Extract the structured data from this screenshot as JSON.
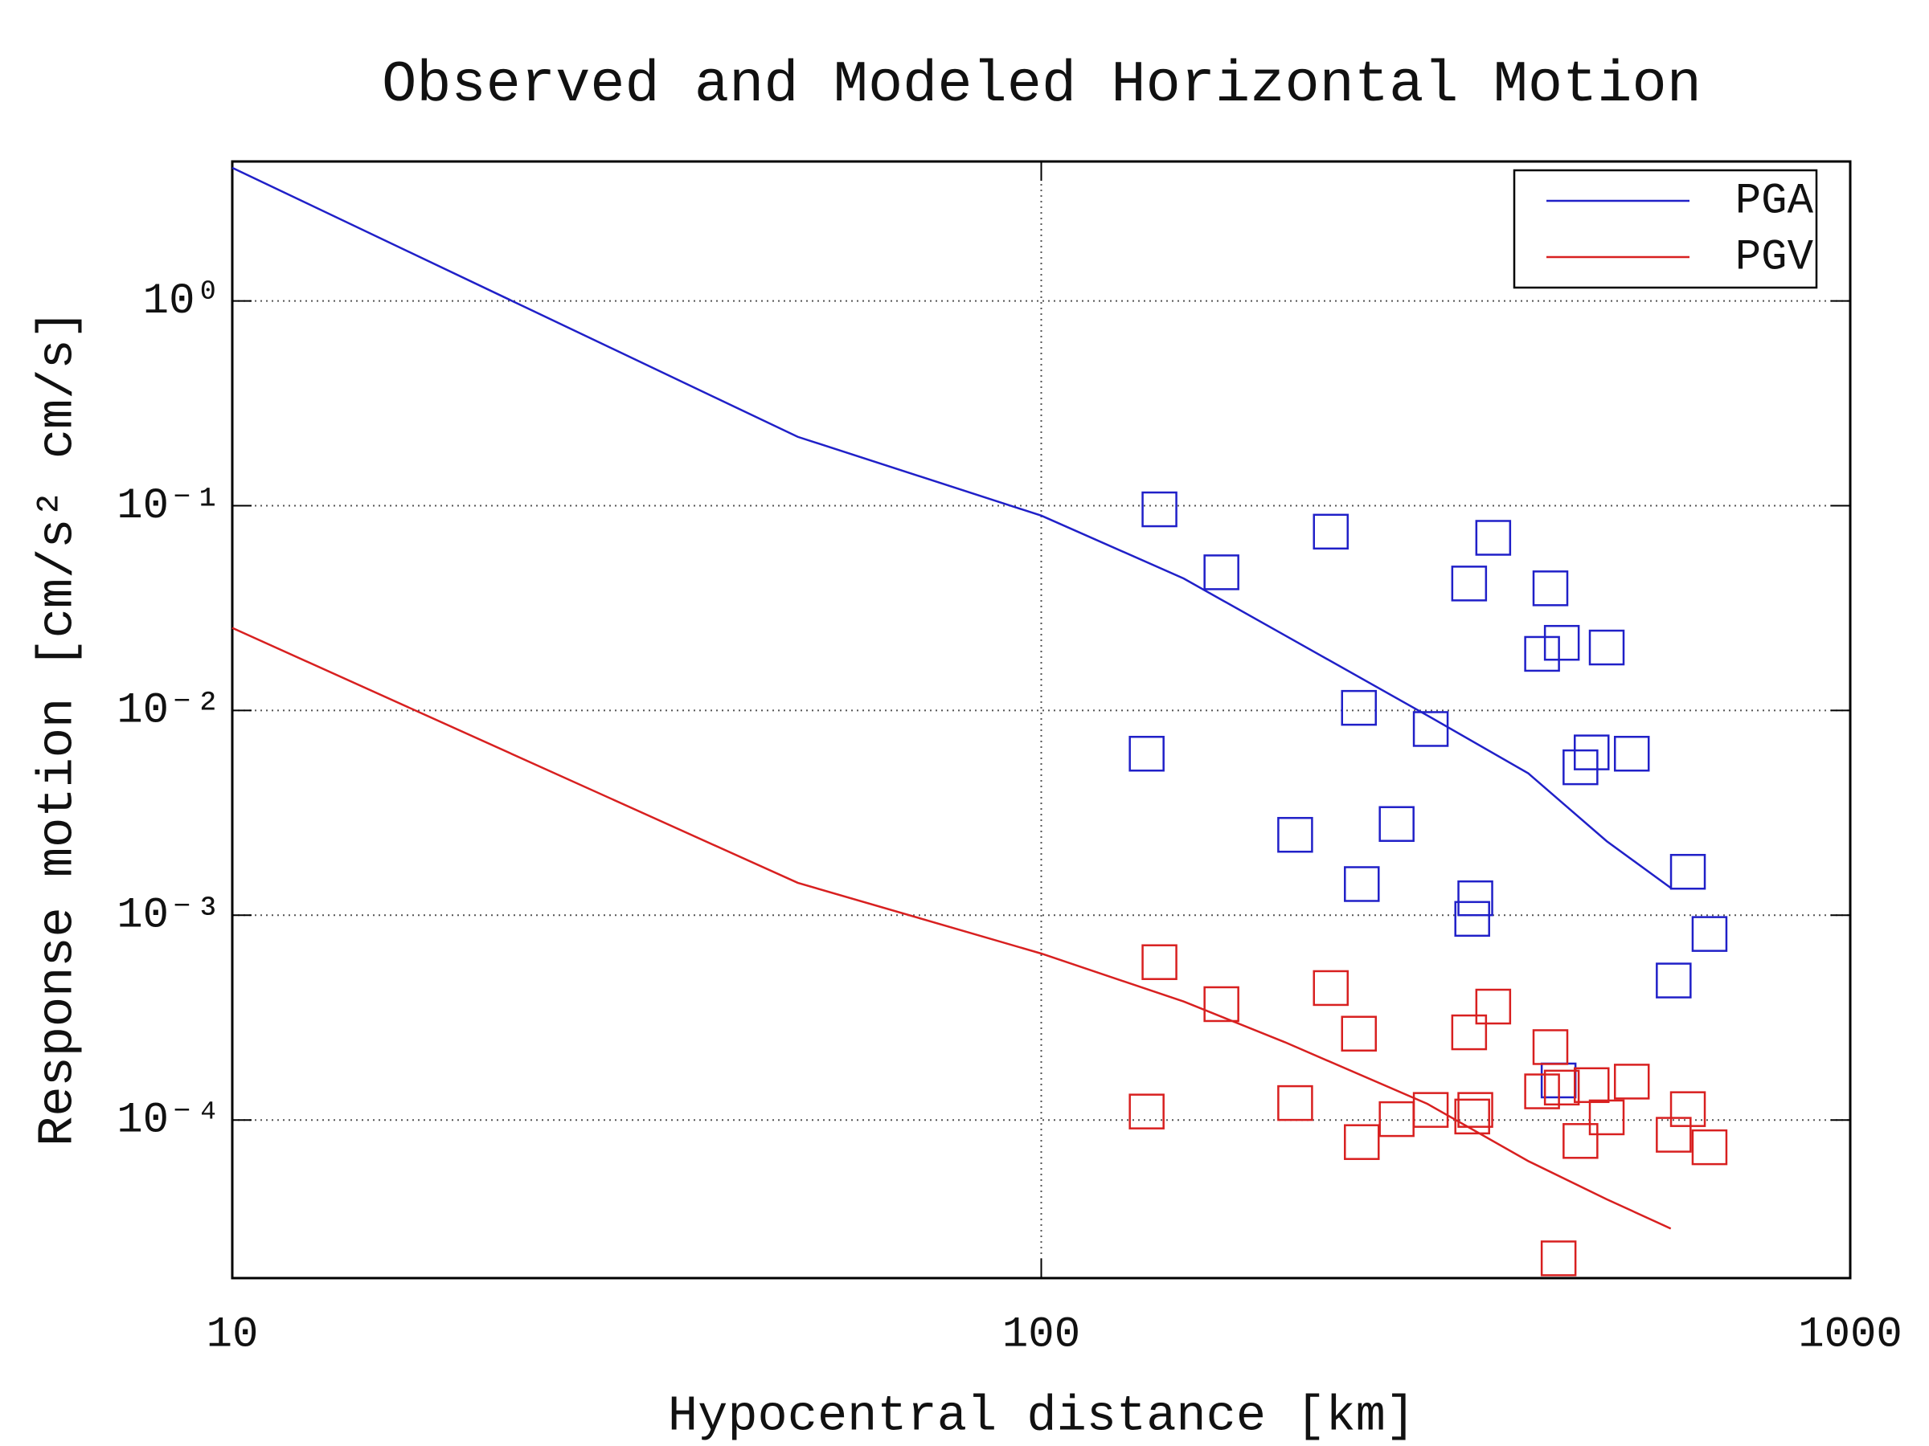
{
  "chart_data": {
    "type": "line",
    "title": "Observed and Modeled Horizontal Motion",
    "xlabel": "Hypocentral distance [km]",
    "ylabel": "Response motion [cm/s² cm/s]",
    "xscale": "log",
    "yscale": "log",
    "xlim": [
      10,
      1000
    ],
    "ylim": [
      1.69e-05,
      4.8
    ],
    "xticks": [
      10,
      100,
      1000
    ],
    "yticks": [
      {
        "value": 0.0001,
        "label": "10⁻⁴"
      },
      {
        "value": 0.001,
        "label": "10⁻³"
      },
      {
        "value": 0.01,
        "label": "10⁻²"
      },
      {
        "value": 0.1,
        "label": "10⁻¹"
      },
      {
        "value": 1,
        "label": "10⁰"
      }
    ],
    "grid": true,
    "legend": "upper right",
    "series": [
      {
        "name": "PGA",
        "color": "#2020c8",
        "mode": "lines",
        "x": [
          10,
          50,
          100,
          150,
          200,
          300,
          400,
          500,
          600
        ],
        "values": [
          4.47,
          0.217,
          0.0895,
          0.0441,
          0.0233,
          0.00946,
          0.00493,
          0.0023,
          0.00136
        ]
      },
      {
        "name": "PGV",
        "color": "#d82020",
        "mode": "lines",
        "x": [
          10,
          50,
          100,
          150,
          200,
          300,
          400,
          500,
          600
        ],
        "values": [
          0.0253,
          0.00144,
          0.00065,
          0.000379,
          0.00024,
          0.00012,
          6.3e-05,
          4.1e-05,
          2.95e-05
        ]
      },
      {
        "color": "#2020c8",
        "mode": "markers",
        "x": [
          140,
          167,
          228,
          362,
          338,
          426,
          440,
          416,
          500,
          135,
          247,
          303,
          479,
          464,
          537,
          206,
          275,
          249,
          344,
          341,
          630,
          670,
          605,
          436
        ],
        "values": [
          0.096,
          0.0473,
          0.0747,
          0.0697,
          0.0417,
          0.0395,
          0.0214,
          0.0189,
          0.0203,
          0.00615,
          0.0103,
          0.00812,
          0.00624,
          0.00528,
          0.00615,
          0.00247,
          0.00279,
          0.00142,
          0.00121,
          0.00096,
          0.00163,
          0.00081,
          0.00048,
          0.000156
        ]
      },
      {
        "color": "#d82020",
        "mode": "markers",
        "x": [
          140,
          167,
          228,
          247,
          362,
          338,
          426,
          537,
          479,
          135,
          206,
          303,
          344,
          341,
          275,
          416,
          440,
          500,
          630,
          605,
          670,
          249,
          464,
          436
        ],
        "values": [
          0.00059,
          0.000368,
          0.000441,
          0.000264,
          0.000358,
          0.000268,
          0.000227,
          0.000154,
          0.000148,
          0.00011,
          0.000121,
          0.000112,
          0.000112,
          0.000104,
          0.000101,
          0.000138,
          0.000144,
          0.000103,
          0.000113,
          8.47e-05,
          7.36e-05,
          7.8e-05,
          7.9e-05,
          2.11e-05
        ]
      }
    ]
  }
}
